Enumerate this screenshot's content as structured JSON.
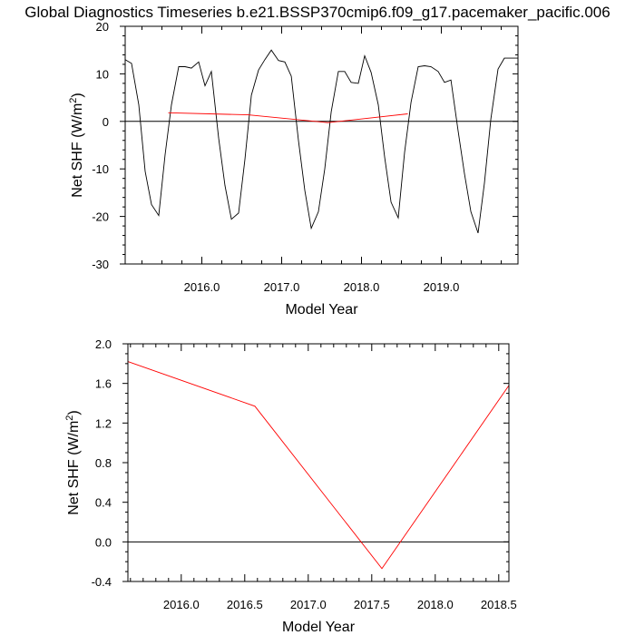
{
  "title": "Global Diagnostics Timeseries b.e21.BSSP370cmip6.f09_g17.pacemaker_pacific.006",
  "chart_data": [
    {
      "type": "line",
      "xlabel": "Model Year",
      "ylabel_main": "Net SHF (W/m",
      "ylabel_sup": "2",
      "ylabel_close": ")",
      "xlim": [
        2015.04,
        2019.96
      ],
      "ylim": [
        -30,
        20
      ],
      "xticks": [
        2016.0,
        2017.0,
        2018.0,
        2019.0
      ],
      "xtick_labels": [
        "2016.0",
        "2017.0",
        "2018.0",
        "2019.0"
      ],
      "yticks": [
        -30,
        -20,
        -10,
        0,
        10,
        20
      ],
      "ytick_labels": [
        "-30",
        "-20",
        "-10",
        "0",
        "10",
        "20"
      ],
      "reference_line": 0,
      "series": [
        {
          "color": "#000000",
          "x": [
            2015.04,
            2015.12,
            2015.21,
            2015.29,
            2015.37,
            2015.46,
            2015.54,
            2015.62,
            2015.71,
            2015.79,
            2015.87,
            2015.96,
            2016.04,
            2016.12,
            2016.21,
            2016.29,
            2016.37,
            2016.46,
            2016.54,
            2016.62,
            2016.71,
            2016.79,
            2016.87,
            2016.96,
            2017.04,
            2017.12,
            2017.21,
            2017.29,
            2017.37,
            2017.46,
            2017.54,
            2017.62,
            2017.71,
            2017.79,
            2017.87,
            2017.96,
            2018.04,
            2018.12,
            2018.21,
            2018.29,
            2018.37,
            2018.46,
            2018.54,
            2018.62,
            2018.71,
            2018.79,
            2018.87,
            2018.96,
            2019.04,
            2019.12,
            2019.21,
            2019.29,
            2019.37,
            2019.46,
            2019.54,
            2019.62,
            2019.71,
            2019.79,
            2019.87,
            2019.96
          ],
          "values": [
            13.0,
            12.2,
            3.5,
            -10.5,
            -17.5,
            -19.8,
            -7.0,
            3.5,
            11.5,
            11.5,
            11.2,
            12.5,
            7.5,
            10.5,
            -3.5,
            -13.5,
            -20.6,
            -19.3,
            -8.0,
            5.5,
            10.8,
            13.0,
            15.0,
            12.8,
            12.5,
            9.5,
            -4.0,
            -14.5,
            -22.5,
            -19.0,
            -10.0,
            2.0,
            10.5,
            10.5,
            8.2,
            8.0,
            13.8,
            10.3,
            3.5,
            -7.5,
            -17.0,
            -20.3,
            -6.5,
            4.0,
            11.5,
            11.7,
            11.5,
            10.5,
            8.2,
            8.7,
            -2.0,
            -11.0,
            -19.0,
            -23.5,
            -13.0,
            0.5,
            11.0,
            13.3,
            13.3,
            13.3
          ]
        },
        {
          "color": "#ff0000",
          "x": [
            2015.58,
            2016.58,
            2017.58,
            2018.58
          ],
          "values": [
            1.82,
            1.37,
            -0.27,
            1.58
          ]
        }
      ]
    },
    {
      "type": "line",
      "xlabel": "Model Year",
      "ylabel_main": "Net SHF (W/m",
      "ylabel_sup": "2",
      "ylabel_close": ")",
      "xlim": [
        2015.58,
        2018.58
      ],
      "ylim": [
        -0.4,
        2.0
      ],
      "xticks": [
        2016.0,
        2016.5,
        2017.0,
        2017.5,
        2018.0,
        2018.5
      ],
      "xtick_labels": [
        "2016.0",
        "2016.5",
        "2017.0",
        "2017.5",
        "2018.0",
        "2018.5"
      ],
      "yticks": [
        -0.4,
        0.0,
        0.4,
        0.8,
        1.2,
        1.6,
        2.0
      ],
      "ytick_labels": [
        "-0.4",
        "0.0",
        "0.4",
        "0.8",
        "1.2",
        "1.6",
        "2.0"
      ],
      "reference_line": 0,
      "series": [
        {
          "color": "#ff0000",
          "x": [
            2015.58,
            2016.58,
            2017.58,
            2018.58
          ],
          "values": [
            1.82,
            1.37,
            -0.27,
            1.58
          ]
        }
      ]
    }
  ]
}
